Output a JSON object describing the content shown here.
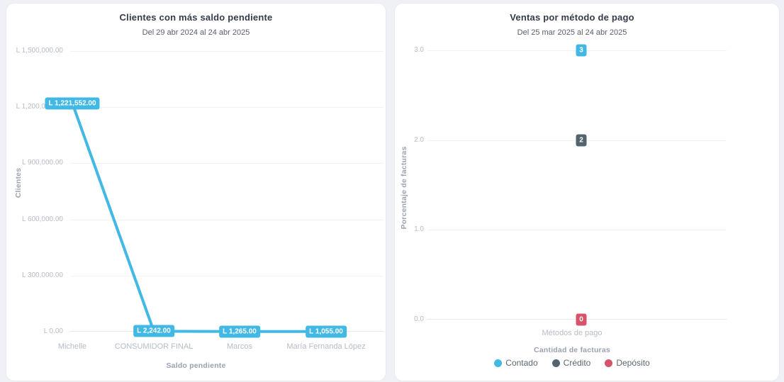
{
  "page": {
    "background": "#f0f1f6",
    "card_background": "#ffffff",
    "card_border": "#e9eaf2"
  },
  "chart_data": [
    {
      "type": "line",
      "title": "Clientes con más saldo pendiente",
      "subtitle": "Del 29 abr 2024 al 24 abr 2025",
      "xlabel": "Saldo pendiente",
      "ylabel": "Clientes",
      "categories": [
        "Michelle",
        "CONSUMIDOR FINAL",
        "Marcos",
        "María Fernanda López"
      ],
      "values": [
        1221552,
        2242,
        1265,
        1055
      ],
      "value_labels": [
        "L 1,221,552.00",
        "L 2,242.00",
        "L 1,265.00",
        "L 1,055.00"
      ],
      "y_ticks": [
        "L 1,500,000.00",
        "L 1,200,000.00",
        "L 900,000.00",
        "L 600,000.00",
        "L 300,000.00",
        "L 0.00"
      ],
      "ylim": [
        0,
        1500000
      ],
      "grid": true,
      "legend_position": "hidden",
      "line_color": "#42b8e5",
      "label_text_color": "#ffffff"
    },
    {
      "type": "scatter",
      "title": "Ventas por método de pago",
      "subtitle": "Del 25 mar 2025 al 24 abr 2025",
      "xlabel": "Cantidad de facturas",
      "ylabel": "Porcentaje de facturas",
      "x_tick_label": "Métodos de pago",
      "series": [
        {
          "name": "Contado",
          "value": 3,
          "value_label": "3",
          "color": "#42b8e5"
        },
        {
          "name": "Crédito",
          "value": 2,
          "value_label": "2",
          "color": "#54646e"
        },
        {
          "name": "Depósito",
          "value": 0,
          "value_label": "0",
          "color": "#d5536b"
        }
      ],
      "y_ticks": [
        "3.0",
        "2.0",
        "1.0",
        "0.0"
      ],
      "ylim": [
        0,
        3
      ],
      "grid": true,
      "legend_position": "bottom"
    }
  ]
}
